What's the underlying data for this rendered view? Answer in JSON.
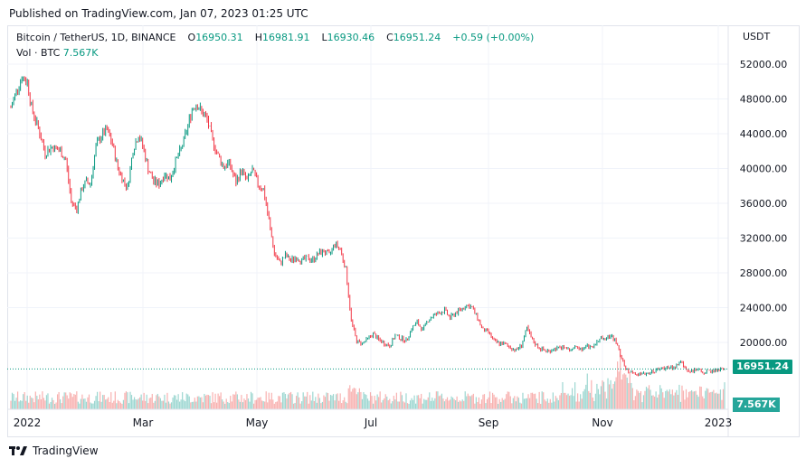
{
  "header": {
    "published": "Published on TradingView.com, Jan 07, 2023 01:25 UTC"
  },
  "legend": {
    "symbol": "Bitcoin / TetherUS, 1D, BINANCE",
    "open_label": "O",
    "open": "16950.31",
    "high_label": "H",
    "high": "16981.91",
    "low_label": "L",
    "low": "16930.46",
    "close_label": "C",
    "close": "16951.24",
    "change": "+0.59 (+0.00%)"
  },
  "volume": {
    "label": "Vol · BTC",
    "value": "7.567K"
  },
  "axis": {
    "currency": "USDT"
  },
  "badges": {
    "last_price": "16951.24",
    "last_volume": "7.567K"
  },
  "footer": {
    "brand": "TradingView"
  },
  "colors": {
    "up": "#089981",
    "down": "#f23645",
    "grid": "#f0f3fa"
  },
  "chart_data": {
    "type": "candlestick",
    "symbol": "BTCUSDT",
    "interval": "1D",
    "x_ticks": [
      "2022",
      "Mar",
      "May",
      "Jul",
      "Sep",
      "Nov",
      "2023"
    ],
    "y_ticks": [
      "52000.00",
      "48000.00",
      "44000.00",
      "40000.00",
      "36000.00",
      "32000.00",
      "28000.00",
      "24000.00",
      "20000.00"
    ],
    "ylim": [
      16400,
      52800
    ],
    "last_price": 16951.24,
    "close_trace": [
      [
        0,
        47000
      ],
      [
        4,
        48900
      ],
      [
        8,
        50500
      ],
      [
        12,
        50000
      ],
      [
        15,
        47000
      ],
      [
        20,
        44600
      ],
      [
        25,
        41800
      ],
      [
        30,
        42500
      ],
      [
        36,
        42000
      ],
      [
        40,
        41000
      ],
      [
        44,
        36200
      ],
      [
        48,
        35400
      ],
      [
        52,
        37800
      ],
      [
        55,
        38500
      ],
      [
        58,
        38200
      ],
      [
        62,
        42500
      ],
      [
        66,
        43800
      ],
      [
        70,
        44400
      ],
      [
        74,
        42800
      ],
      [
        78,
        40000
      ],
      [
        82,
        38600
      ],
      [
        85,
        37800
      ],
      [
        89,
        42200
      ],
      [
        93,
        43900
      ],
      [
        96,
        42600
      ],
      [
        100,
        40000
      ],
      [
        104,
        38500
      ],
      [
        108,
        38200
      ],
      [
        112,
        39400
      ],
      [
        116,
        38800
      ],
      [
        120,
        40800
      ],
      [
        124,
        42200
      ],
      [
        128,
        44300
      ],
      [
        132,
        46800
      ],
      [
        135,
        47500
      ],
      [
        139,
        46500
      ],
      [
        143,
        45600
      ],
      [
        147,
        43200
      ],
      [
        151,
        41500
      ],
      [
        155,
        40200
      ],
      [
        159,
        40600
      ],
      [
        164,
        38400
      ],
      [
        168,
        39800
      ],
      [
        172,
        38600
      ],
      [
        176,
        39800
      ],
      [
        180,
        38200
      ],
      [
        184,
        37600
      ],
      [
        188,
        34000
      ],
      [
        192,
        30200
      ],
      [
        196,
        29100
      ],
      [
        200,
        30000
      ],
      [
        204,
        29400
      ],
      [
        208,
        29800
      ],
      [
        212,
        29400
      ],
      [
        216,
        29700
      ],
      [
        220,
        29500
      ],
      [
        224,
        30200
      ],
      [
        228,
        30500
      ],
      [
        232,
        30000
      ],
      [
        236,
        31400
      ],
      [
        240,
        30700
      ],
      [
        244,
        28400
      ],
      [
        248,
        22500
      ],
      [
        252,
        20100
      ],
      [
        256,
        19900
      ],
      [
        260,
        20400
      ],
      [
        264,
        21000
      ],
      [
        268,
        20300
      ],
      [
        272,
        19900
      ],
      [
        276,
        19600
      ],
      [
        280,
        20800
      ],
      [
        284,
        20500
      ],
      [
        288,
        20200
      ],
      [
        292,
        21600
      ],
      [
        296,
        22300
      ],
      [
        300,
        21400
      ],
      [
        304,
        22600
      ],
      [
        308,
        23100
      ],
      [
        312,
        23400
      ],
      [
        316,
        23700
      ],
      [
        320,
        22800
      ],
      [
        324,
        23400
      ],
      [
        328,
        23800
      ],
      [
        332,
        24300
      ],
      [
        336,
        24000
      ],
      [
        340,
        22800
      ],
      [
        344,
        21400
      ],
      [
        348,
        21200
      ],
      [
        352,
        20100
      ],
      [
        356,
        19900
      ],
      [
        360,
        19800
      ],
      [
        364,
        19400
      ],
      [
        368,
        19100
      ],
      [
        372,
        19700
      ],
      [
        376,
        21600
      ],
      [
        380,
        20200
      ],
      [
        384,
        19500
      ],
      [
        388,
        19100
      ],
      [
        392,
        19000
      ],
      [
        396,
        19300
      ],
      [
        400,
        19300
      ],
      [
        404,
        19400
      ],
      [
        408,
        19100
      ],
      [
        412,
        19500
      ],
      [
        416,
        19300
      ],
      [
        420,
        19600
      ],
      [
        424,
        19500
      ],
      [
        428,
        20200
      ],
      [
        432,
        20600
      ],
      [
        436,
        20700
      ],
      [
        440,
        20500
      ],
      [
        444,
        18500
      ],
      [
        448,
        16900
      ],
      [
        452,
        16500
      ],
      [
        456,
        16500
      ],
      [
        460,
        16300
      ],
      [
        464,
        16500
      ],
      [
        468,
        16700
      ],
      [
        472,
        16900
      ],
      [
        476,
        17100
      ],
      [
        480,
        17000
      ],
      [
        484,
        17200
      ],
      [
        488,
        17800
      ],
      [
        492,
        16900
      ],
      [
        496,
        16700
      ],
      [
        500,
        16800
      ],
      [
        504,
        16600
      ],
      [
        508,
        16600
      ],
      [
        512,
        16800
      ],
      [
        516,
        16900
      ],
      [
        520,
        16950
      ]
    ]
  }
}
